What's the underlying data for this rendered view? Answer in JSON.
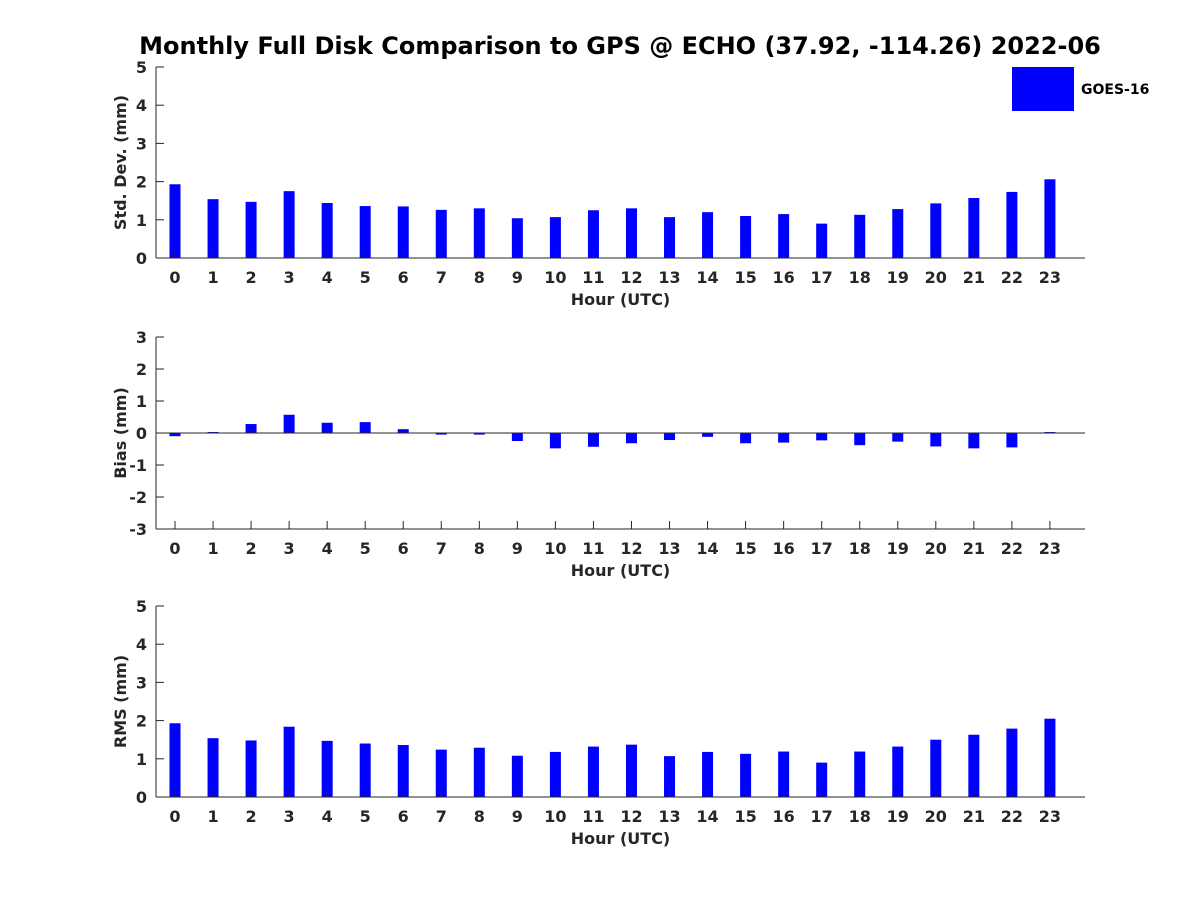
{
  "chart_data": {
    "title": "Monthly Full Disk Comparison to GPS @ ECHO (37.92, -114.26) 2022-06",
    "legend": {
      "entries": [
        "GOES-16"
      ],
      "placement": "top-right"
    },
    "colors": {
      "bar": "#0000ff",
      "axis": "#262626"
    },
    "panels": [
      {
        "type": "bar",
        "ylabel": "Std. Dev. (mm)",
        "xlabel": "Hour (UTC)",
        "ylim": [
          0,
          5
        ],
        "yticks": [
          "0",
          "1",
          "2",
          "3",
          "4",
          "5"
        ],
        "categories": [
          "0",
          "1",
          "2",
          "3",
          "4",
          "5",
          "6",
          "7",
          "8",
          "9",
          "10",
          "11",
          "12",
          "13",
          "14",
          "15",
          "16",
          "17",
          "18",
          "19",
          "20",
          "21",
          "22",
          "23"
        ],
        "series": [
          {
            "name": "GOES-16",
            "values": [
              1.93,
              1.54,
              1.47,
              1.75,
              1.44,
              1.36,
              1.35,
              1.26,
              1.3,
              1.04,
              1.07,
              1.25,
              1.3,
              1.07,
              1.2,
              1.1,
              1.15,
              0.9,
              1.13,
              1.28,
              1.43,
              1.57,
              1.73,
              2.06
            ]
          }
        ]
      },
      {
        "type": "bar",
        "ylabel": "Bias (mm)",
        "xlabel": "Hour (UTC)",
        "ylim": [
          -3,
          3
        ],
        "yticks": [
          "-3",
          "-2",
          "-1",
          "0",
          "1",
          "2",
          "3"
        ],
        "zero_line": true,
        "categories": [
          "0",
          "1",
          "2",
          "3",
          "4",
          "5",
          "6",
          "7",
          "8",
          "9",
          "10",
          "11",
          "12",
          "13",
          "14",
          "15",
          "16",
          "17",
          "18",
          "19",
          "20",
          "21",
          "22",
          "23"
        ],
        "series": [
          {
            "name": "GOES-16",
            "values": [
              -0.1,
              0.03,
              0.28,
              0.57,
              0.32,
              0.34,
              0.12,
              -0.05,
              -0.05,
              -0.25,
              -0.48,
              -0.43,
              -0.32,
              -0.22,
              -0.12,
              -0.32,
              -0.3,
              -0.23,
              -0.38,
              -0.27,
              -0.42,
              -0.48,
              -0.45,
              0.03
            ]
          }
        ]
      },
      {
        "type": "bar",
        "ylabel": "RMS (mm)",
        "xlabel": "Hour (UTC)",
        "ylim": [
          0,
          5
        ],
        "yticks": [
          "0",
          "1",
          "2",
          "3",
          "4",
          "5"
        ],
        "categories": [
          "0",
          "1",
          "2",
          "3",
          "4",
          "5",
          "6",
          "7",
          "8",
          "9",
          "10",
          "11",
          "12",
          "13",
          "14",
          "15",
          "16",
          "17",
          "18",
          "19",
          "20",
          "21",
          "22",
          "23"
        ],
        "series": [
          {
            "name": "GOES-16",
            "values": [
              1.93,
              1.54,
              1.48,
              1.84,
              1.47,
              1.4,
              1.36,
              1.24,
              1.29,
              1.08,
              1.18,
              1.32,
              1.37,
              1.07,
              1.18,
              1.13,
              1.19,
              0.9,
              1.19,
              1.32,
              1.5,
              1.63,
              1.79,
              2.05
            ]
          }
        ]
      }
    ]
  }
}
